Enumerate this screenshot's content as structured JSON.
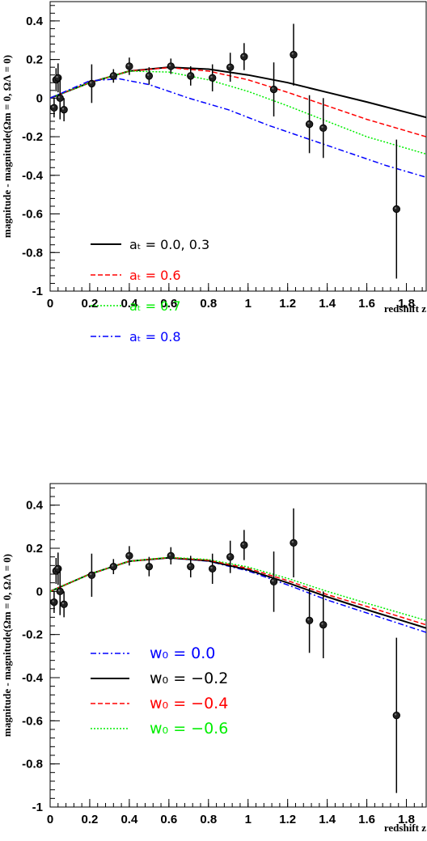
{
  "chart_data": [
    {
      "type": "line",
      "title": "",
      "xlabel": "redshift z",
      "ylabel": "magnitude - magnitude(Ωm = 0, ΩΛ = 0)",
      "xlim": [
        0,
        1.9
      ],
      "ylim": [
        -1,
        0.5
      ],
      "grid": false,
      "legend_position": "lower-left",
      "xticks": [
        "0",
        "0.2",
        "0.4",
        "0.6",
        "0.8",
        "1",
        "1.2",
        "1.4",
        "1.6",
        "1.8"
      ],
      "yticks": [
        "0.4",
        "0.2",
        "0",
        "-0.2",
        "-0.4",
        "-0.6",
        "-0.8",
        "-1"
      ],
      "points": {
        "x": [
          0.02,
          0.03,
          0.04,
          0.05,
          0.07,
          0.21,
          0.32,
          0.4,
          0.5,
          0.61,
          0.71,
          0.82,
          0.91,
          0.98,
          1.13,
          1.23,
          1.31,
          1.38,
          1.75
        ],
        "y": [
          -0.05,
          0.095,
          0.105,
          0.0,
          -0.06,
          0.075,
          0.115,
          0.165,
          0.115,
          0.165,
          0.115,
          0.105,
          0.16,
          0.215,
          0.045,
          0.225,
          -0.135,
          -0.155,
          -0.575
        ],
        "yerr": [
          0.05,
          0.06,
          0.075,
          0.11,
          0.06,
          0.1,
          0.035,
          0.045,
          0.045,
          0.04,
          0.05,
          0.07,
          0.075,
          0.07,
          0.14,
          0.16,
          0.15,
          0.155,
          0.36
        ]
      },
      "series": [
        {
          "name": "aₜ = 0.0, 0.3",
          "color": "#000000",
          "dash": "solid",
          "x": [
            0,
            0.2,
            0.4,
            0.6,
            0.8,
            1.0,
            1.2,
            1.4,
            1.6,
            1.9
          ],
          "y": [
            0.0,
            0.08,
            0.14,
            0.16,
            0.15,
            0.12,
            0.08,
            0.03,
            -0.02,
            -0.1
          ]
        },
        {
          "name": "aₜ = 0.6",
          "color": "#ff0000",
          "dash": "dashed",
          "x": [
            0,
            0.2,
            0.4,
            0.6,
            0.8,
            1.0,
            1.2,
            1.4,
            1.6,
            1.9
          ],
          "y": [
            0.0,
            0.08,
            0.14,
            0.158,
            0.14,
            0.095,
            0.03,
            -0.04,
            -0.11,
            -0.2
          ]
        },
        {
          "name": "aₜ = 0.7",
          "color": "#00ee00",
          "dash": "dotted",
          "x": [
            0,
            0.2,
            0.4,
            0.6,
            0.8,
            1.0,
            1.2,
            1.4,
            1.6,
            1.9
          ],
          "y": [
            0.0,
            0.08,
            0.14,
            0.135,
            0.095,
            0.035,
            -0.04,
            -0.12,
            -0.2,
            -0.29
          ]
        },
        {
          "name": "aₜ = 0.8",
          "color": "#0000ff",
          "dash": "dashdot",
          "x": [
            0,
            0.2,
            0.35,
            0.5,
            0.7,
            0.9,
            1.1,
            1.3,
            1.5,
            1.7,
            1.9
          ],
          "y": [
            0.0,
            0.09,
            0.1,
            0.07,
            0.0,
            -0.06,
            -0.14,
            -0.21,
            -0.28,
            -0.35,
            -0.41
          ]
        }
      ],
      "legend": [
        {
          "label": "aₜ = 0.0, 0.3",
          "color": "#000000"
        },
        {
          "label": "aₜ = 0.6",
          "color": "#ff0000"
        },
        {
          "label": "aₜ = 0.7",
          "color": "#00ee00"
        },
        {
          "label": "aₜ = 0.8",
          "color": "#0000ff"
        }
      ]
    },
    {
      "type": "line",
      "title": "",
      "xlabel": "redshift z",
      "ylabel": "magnitude - magnitude(Ωm = 0, ΩΛ = 0)",
      "xlim": [
        0,
        1.9
      ],
      "ylim": [
        -1,
        0.5
      ],
      "grid": false,
      "legend_position": "lower-left",
      "xticks": [
        "0",
        "0.2",
        "0.4",
        "0.6",
        "0.8",
        "1",
        "1.2",
        "1.4",
        "1.6",
        "1.8"
      ],
      "yticks": [
        "0.4",
        "0.2",
        "0",
        "-0.2",
        "-0.4",
        "-0.6",
        "-0.8",
        "-1"
      ],
      "points": {
        "x": [
          0.02,
          0.03,
          0.04,
          0.05,
          0.07,
          0.21,
          0.32,
          0.4,
          0.5,
          0.61,
          0.71,
          0.82,
          0.91,
          0.98,
          1.13,
          1.23,
          1.31,
          1.38,
          1.75
        ],
        "y": [
          -0.05,
          0.095,
          0.105,
          0.0,
          -0.06,
          0.075,
          0.115,
          0.165,
          0.115,
          0.165,
          0.115,
          0.105,
          0.16,
          0.215,
          0.045,
          0.225,
          -0.135,
          -0.155,
          -0.575
        ],
        "yerr": [
          0.05,
          0.06,
          0.075,
          0.11,
          0.06,
          0.1,
          0.035,
          0.045,
          0.045,
          0.04,
          0.05,
          0.07,
          0.075,
          0.07,
          0.14,
          0.16,
          0.15,
          0.155,
          0.36
        ]
      },
      "series": [
        {
          "name": "w₀ = 0.0",
          "color": "#0000ff",
          "dash": "dashdot",
          "x": [
            0,
            0.2,
            0.4,
            0.6,
            0.8,
            1.0,
            1.2,
            1.4,
            1.6,
            1.9
          ],
          "y": [
            0.0,
            0.08,
            0.14,
            0.155,
            0.14,
            0.095,
            0.03,
            -0.04,
            -0.1,
            -0.19
          ]
        },
        {
          "name": "w₀ = −0.2",
          "color": "#000000",
          "dash": "solid",
          "x": [
            0,
            0.2,
            0.4,
            0.6,
            0.8,
            1.0,
            1.2,
            1.4,
            1.6,
            1.9
          ],
          "y": [
            0.0,
            0.08,
            0.14,
            0.156,
            0.142,
            0.1,
            0.04,
            -0.025,
            -0.085,
            -0.17
          ]
        },
        {
          "name": "w₀ = −0.4",
          "color": "#ff0000",
          "dash": "dashed",
          "x": [
            0,
            0.2,
            0.4,
            0.6,
            0.8,
            1.0,
            1.2,
            1.4,
            1.6,
            1.9
          ],
          "y": [
            0.0,
            0.08,
            0.14,
            0.157,
            0.145,
            0.107,
            0.05,
            -0.015,
            -0.07,
            -0.155
          ]
        },
        {
          "name": "w₀ = −0.6",
          "color": "#00ee00",
          "dash": "dotted",
          "x": [
            0,
            0.2,
            0.4,
            0.6,
            0.8,
            1.0,
            1.2,
            1.4,
            1.6,
            1.9
          ],
          "y": [
            0.0,
            0.08,
            0.14,
            0.158,
            0.148,
            0.113,
            0.06,
            0.0,
            -0.055,
            -0.135
          ]
        }
      ],
      "legend": [
        {
          "label": "w₀ = 0.0",
          "color": "#0000ff"
        },
        {
          "label": "w₀ = −0.2",
          "color": "#000000"
        },
        {
          "label": "w₀ = −0.4",
          "color": "#ff0000"
        },
        {
          "label": "w₀ = −0.6",
          "color": "#00ee00"
        }
      ]
    }
  ]
}
